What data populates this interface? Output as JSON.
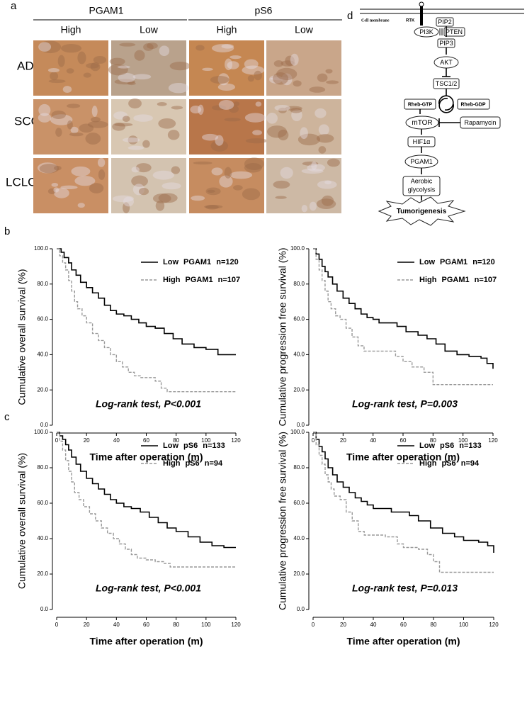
{
  "panel_labels": [
    "a",
    "b",
    "c",
    "d"
  ],
  "ihc": {
    "markers": [
      "PGAM1",
      "pS6"
    ],
    "levels": [
      "High",
      "Low",
      "High",
      "Low"
    ],
    "rows": [
      "ADC",
      "SCC",
      "LCLC"
    ]
  },
  "pathway": {
    "membrane": "Cell membrane",
    "receptor": "RTK",
    "nodes": [
      "PIP2",
      "PI3K",
      "PTEN",
      "PIP3",
      "AKT",
      "TSC1/2",
      "Rheb-GTP",
      "Rheb-GDP",
      "mTOR",
      "Rapamycin",
      "HIF1α",
      "PGAM1",
      "Aerobic",
      "glycolysis",
      "Tumorigenesis"
    ]
  },
  "chart_data": [
    {
      "type": "step",
      "xlabel": "Time after operation (m)",
      "ylabel": "Cumulative overall survival (%)",
      "annotation": "Log-rank test, P<0.001",
      "xlim": [
        0,
        120
      ],
      "xticks": [
        0,
        20,
        40,
        60,
        80,
        100,
        120
      ],
      "ylim": [
        0,
        100
      ],
      "yticks": [
        {
          "value": 0,
          "label": "0.0"
        },
        {
          "value": 20,
          "label": "20.0"
        },
        {
          "value": 40,
          "label": "40.0"
        },
        {
          "value": 60,
          "label": "60.0"
        },
        {
          "value": 80,
          "label": "80.0"
        },
        {
          "value": 100,
          "label": "100.0"
        }
      ],
      "series": [
        {
          "name": "Low PGAM1 n=120",
          "color": "#000000",
          "dashed": false,
          "x": [
            0,
            3,
            5,
            8,
            10,
            13,
            16,
            20,
            24,
            28,
            32,
            36,
            40,
            45,
            50,
            55,
            60,
            66,
            72,
            78,
            84,
            92,
            100,
            108,
            115,
            120
          ],
          "values": [
            100,
            98,
            95,
            92,
            88,
            85,
            81,
            78,
            75,
            72,
            68,
            65,
            63,
            62,
            60,
            58,
            56,
            55,
            52,
            49,
            46,
            44,
            43,
            40,
            40,
            40
          ]
        },
        {
          "name": "High PGAM1 n=107",
          "color": "#999999",
          "dashed": true,
          "x": [
            0,
            2,
            4,
            6,
            8,
            10,
            12,
            14,
            17,
            20,
            24,
            28,
            32,
            36,
            40,
            44,
            48,
            52,
            56,
            60,
            66,
            70,
            74,
            120
          ],
          "values": [
            100,
            96,
            92,
            88,
            82,
            76,
            70,
            66,
            62,
            58,
            52,
            48,
            44,
            40,
            36,
            33,
            30,
            28,
            27,
            27,
            25,
            21,
            19,
            19
          ]
        }
      ]
    },
    {
      "type": "step",
      "xlabel": "Time after operation (m)",
      "ylabel": "Cumulative progression free survival (%)",
      "annotation": "Log-rank test, P=0.003",
      "xlim": [
        0,
        120
      ],
      "xticks": [
        0,
        20,
        40,
        60,
        80,
        100,
        120
      ],
      "ylim": [
        0,
        100
      ],
      "yticks": [
        {
          "value": 0,
          "label": "0.0"
        },
        {
          "value": 20,
          "label": "20.0"
        },
        {
          "value": 40,
          "label": "40.0"
        },
        {
          "value": 60,
          "label": "60.0"
        },
        {
          "value": 80,
          "label": "80.0"
        },
        {
          "value": 100,
          "label": "100.0"
        }
      ],
      "series": [
        {
          "name": "Low PGAM1 n=120",
          "color": "#000000",
          "dashed": false,
          "x": [
            0,
            2,
            4,
            6,
            8,
            10,
            13,
            16,
            20,
            24,
            28,
            32,
            36,
            40,
            44,
            50,
            56,
            62,
            70,
            76,
            82,
            88,
            96,
            104,
            112,
            116,
            120
          ],
          "values": [
            100,
            97,
            94,
            90,
            87,
            84,
            80,
            76,
            72,
            69,
            66,
            63,
            61,
            60,
            58,
            58,
            56,
            53,
            51,
            49,
            46,
            42,
            40,
            39,
            38,
            35,
            32
          ]
        },
        {
          "name": "High PGAM1 n=107",
          "color": "#999999",
          "dashed": true,
          "x": [
            0,
            2,
            4,
            6,
            8,
            10,
            12,
            15,
            18,
            22,
            26,
            30,
            34,
            40,
            48,
            55,
            60,
            66,
            74,
            80,
            82,
            120
          ],
          "values": [
            100,
            94,
            88,
            82,
            76,
            70,
            66,
            62,
            60,
            55,
            50,
            45,
            42,
            42,
            42,
            39,
            36,
            33,
            30,
            23,
            23,
            23
          ]
        }
      ]
    },
    {
      "type": "step",
      "xlabel": "Time after operation (m)",
      "ylabel": "Cumulative overall survival (%)",
      "annotation": "Log-rank test, P<0.001",
      "xlim": [
        0,
        120
      ],
      "xticks": [
        0,
        20,
        40,
        60,
        80,
        100,
        120
      ],
      "ylim": [
        0,
        100
      ],
      "yticks": [
        {
          "value": 0,
          "label": "0.0"
        },
        {
          "value": 20,
          "label": "20.0"
        },
        {
          "value": 40,
          "label": "40.0"
        },
        {
          "value": 60,
          "label": "60.0"
        },
        {
          "value": 80,
          "label": "80.0"
        },
        {
          "value": 100,
          "label": "100.0"
        }
      ],
      "series": [
        {
          "name": "Low pS6 n=133",
          "color": "#000000",
          "dashed": false,
          "x": [
            0,
            2,
            4,
            6,
            8,
            10,
            13,
            16,
            20,
            24,
            28,
            32,
            36,
            40,
            45,
            50,
            56,
            62,
            68,
            74,
            80,
            88,
            96,
            104,
            112,
            120
          ],
          "values": [
            100,
            98,
            96,
            93,
            90,
            86,
            82,
            78,
            74,
            71,
            68,
            65,
            62,
            60,
            58,
            57,
            55,
            52,
            49,
            46,
            44,
            41,
            38,
            36,
            35,
            35
          ]
        },
        {
          "name": "High pS6 n=94",
          "color": "#999999",
          "dashed": true,
          "x": [
            0,
            2,
            4,
            6,
            8,
            10,
            12,
            15,
            18,
            22,
            26,
            30,
            34,
            38,
            42,
            46,
            50,
            54,
            60,
            66,
            72,
            76,
            120
          ],
          "values": [
            100,
            95,
            90,
            84,
            78,
            72,
            66,
            62,
            58,
            54,
            50,
            46,
            43,
            40,
            37,
            34,
            31,
            29,
            28,
            27,
            26,
            24,
            24
          ]
        }
      ]
    },
    {
      "type": "step",
      "xlabel": "Time after operation (m)",
      "ylabel": "Cumulative progression free survival (%)",
      "annotation": "Log-rank test, P=0.013",
      "xlim": [
        0,
        120
      ],
      "xticks": [
        0,
        20,
        40,
        60,
        80,
        100,
        120
      ],
      "ylim": [
        0,
        100
      ],
      "yticks": [
        {
          "value": 0,
          "label": "0.0"
        },
        {
          "value": 20,
          "label": "20.0"
        },
        {
          "value": 40,
          "label": "40.0"
        },
        {
          "value": 60,
          "label": "60.0"
        },
        {
          "value": 80,
          "label": "80.0"
        },
        {
          "value": 100,
          "label": "100.0"
        }
      ],
      "series": [
        {
          "name": "Low pS6 n=133",
          "color": "#000000",
          "dashed": false,
          "x": [
            0,
            2,
            4,
            6,
            8,
            10,
            13,
            16,
            20,
            24,
            28,
            32,
            36,
            40,
            46,
            52,
            58,
            64,
            70,
            78,
            86,
            94,
            100,
            110,
            116,
            120
          ],
          "values": [
            100,
            96,
            92,
            89,
            85,
            80,
            76,
            72,
            69,
            66,
            63,
            61,
            59,
            57,
            57,
            55,
            55,
            53,
            50,
            46,
            43,
            41,
            39,
            38,
            36,
            32
          ]
        },
        {
          "name": "High pS6 n=94",
          "color": "#999999",
          "dashed": true,
          "x": [
            0,
            2,
            4,
            6,
            8,
            10,
            12,
            14,
            18,
            22,
            26,
            30,
            34,
            40,
            48,
            56,
            60,
            70,
            76,
            80,
            84,
            120
          ],
          "values": [
            100,
            93,
            87,
            82,
            76,
            72,
            68,
            64,
            62,
            55,
            50,
            44,
            42,
            42,
            41,
            37,
            35,
            34,
            31,
            27,
            21,
            21
          ]
        }
      ]
    }
  ]
}
